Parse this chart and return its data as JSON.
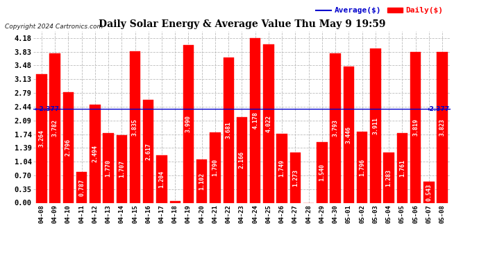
{
  "title": "Daily Solar Energy & Average Value Thu May 9 19:59",
  "copyright": "Copyright 2024 Cartronics.com",
  "legend_avg": "Average($)",
  "legend_daily": "Daily($)",
  "average_line": 2.377,
  "average_label_left": "←2.377",
  "average_label_right": "→2.377",
  "categories": [
    "04-08",
    "04-09",
    "04-10",
    "04-11",
    "04-12",
    "04-13",
    "04-14",
    "04-15",
    "04-16",
    "04-17",
    "04-18",
    "04-19",
    "04-20",
    "04-21",
    "04-22",
    "04-23",
    "04-24",
    "04-25",
    "04-26",
    "04-27",
    "04-28",
    "04-29",
    "04-30",
    "05-01",
    "05-02",
    "05-03",
    "05-04",
    "05-05",
    "05-06",
    "05-07",
    "05-08"
  ],
  "values": [
    3.264,
    3.782,
    2.796,
    0.787,
    2.494,
    1.77,
    1.707,
    3.835,
    2.617,
    1.204,
    0.046,
    3.99,
    1.102,
    1.79,
    3.681,
    2.166,
    4.178,
    4.022,
    1.749,
    1.273,
    0.0,
    1.54,
    3.793,
    3.446,
    1.796,
    3.911,
    1.283,
    1.761,
    3.819,
    0.543,
    3.823
  ],
  "bar_color": "#ff0000",
  "average_line_color": "#0000cc",
  "yticks": [
    0.0,
    0.35,
    0.7,
    1.04,
    1.39,
    1.74,
    2.09,
    2.44,
    2.79,
    3.13,
    3.48,
    3.83,
    4.18
  ],
  "ylim": [
    0,
    4.35
  ],
  "background_color": "#ffffff",
  "grid_color": "#bbbbbb",
  "title_color": "#000000",
  "value_label_color": "#ffffff",
  "value_label_fontsize": 6.0,
  "xlabel_fontsize": 6.5,
  "ylabel_fontsize": 7.5
}
